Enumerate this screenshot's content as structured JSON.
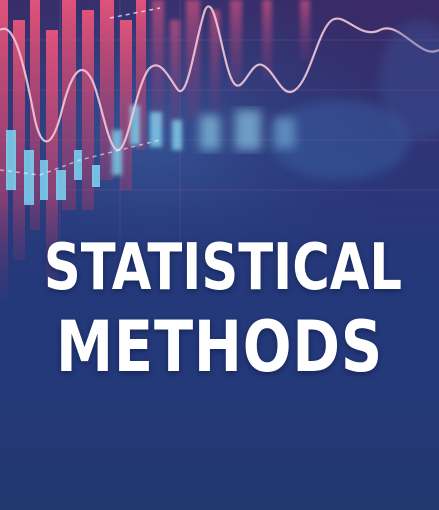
{
  "cover": {
    "title_line1": "STATISTICAL",
    "title_line2": "METHODS"
  },
  "colors": {
    "background": "#24397a",
    "bars": "#e0466a",
    "cyan_bars": "#7fd6f2",
    "line": "#f4c7d6",
    "text": "#ffffff"
  },
  "icons": [
    "stock-chart-illustration"
  ]
}
